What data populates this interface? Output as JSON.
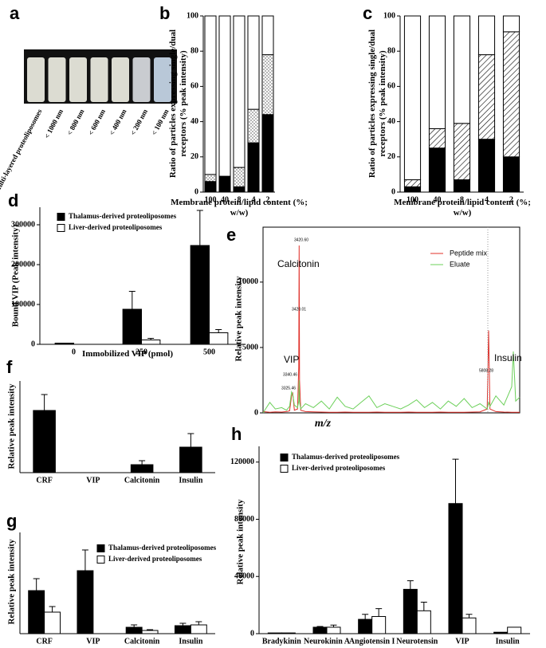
{
  "chart_data": [
    {
      "panel": "a",
      "type": "image",
      "labels": [
        "Multi-layered proteoliposomes",
        "< 1000 nm",
        "< 800 nm",
        "< 600 nm",
        "< 400 nm",
        "< 200 nm",
        "< 100 nm"
      ]
    },
    {
      "panel": "b",
      "type": "stacked_bar",
      "categories": [
        "100",
        "40",
        "8",
        "4",
        "2"
      ],
      "series": [
        {
          "color": "#000000",
          "values": [
            6,
            9,
            3,
            28,
            44
          ]
        },
        {
          "color": "#ffffff",
          "pattern": "dots",
          "values": [
            4,
            0,
            11,
            19,
            34
          ]
        },
        {
          "color": "#ffffff",
          "values": [
            90,
            91,
            86,
            53,
            22
          ]
        }
      ],
      "ylim": [
        0,
        100
      ],
      "yticks": [
        0,
        20,
        40,
        60,
        80,
        100
      ],
      "ylabel": "Ratio of particles expressing single/dual receptors (% peak intensity)",
      "xlabel": "Membrane protein/lipid content (%; w/w)"
    },
    {
      "panel": "c",
      "type": "stacked_bar",
      "categories": [
        "100",
        "40",
        "8",
        "4",
        "2"
      ],
      "series": [
        {
          "color": "#000000",
          "values": [
            3,
            25,
            7,
            30,
            20
          ]
        },
        {
          "color": "#ffffff",
          "pattern": "hatch",
          "values": [
            4,
            11,
            32,
            48,
            71
          ]
        },
        {
          "color": "#ffffff",
          "values": [
            93,
            64,
            61,
            22,
            9
          ]
        }
      ],
      "ylim": [
        0,
        100
      ],
      "yticks": [
        0,
        20,
        40,
        60,
        80,
        100
      ],
      "ylabel": "Ratio of particles expressing single/dual receptors (% peak intensity)",
      "xlabel": "Membrane protein/lipid content (%; w/w)"
    },
    {
      "panel": "d",
      "type": "bar",
      "categories": [
        "0",
        "250",
        "500"
      ],
      "series": [
        {
          "name": "Thalamus-derived proteoliposomes",
          "color": "#000000",
          "values": [
            3000,
            88000,
            248000
          ],
          "errors": [
            0,
            45000,
            88000
          ]
        },
        {
          "name": "Liver-derived proteoliposomes",
          "color": "#ffffff",
          "values": [
            0,
            11000,
            29000
          ],
          "errors": [
            0,
            4000,
            8000
          ]
        }
      ],
      "ylim": [
        0,
        344000
      ],
      "yticks": [
        0,
        100000,
        200000,
        300000
      ],
      "ylabel": "Bound VIP (Peak intensity)",
      "xlabel": "Immobilized VIP (pmol)",
      "legend": "upper left"
    },
    {
      "panel": "e",
      "type": "line",
      "x": [
        2965,
        3050,
        3120,
        3200,
        3260,
        3300,
        3325,
        3340,
        3360,
        3400,
        3415,
        3420,
        3425,
        3440,
        3500,
        3600,
        3700,
        3800,
        3900,
        4000,
        4100,
        4200,
        4300,
        4400,
        4500,
        4600,
        4700,
        4800,
        4900,
        5000,
        5100,
        5200,
        5300,
        5400,
        5500,
        5600,
        5700,
        5790,
        5808,
        5825,
        5900,
        6000,
        6100,
        6120,
        6150,
        6200
      ],
      "series": [
        {
          "name": "Peptide mix",
          "color": "#e0302a",
          "values": [
            100,
            50,
            80,
            60,
            100,
            150,
            1300,
            1500,
            200,
            300,
            3500,
            12800,
            2500,
            200,
            100,
            80,
            60,
            50,
            50,
            60,
            50,
            40,
            50,
            60,
            50,
            40,
            50,
            60,
            50,
            40,
            50,
            60,
            50,
            40,
            50,
            60,
            80,
            300,
            6300,
            300,
            100,
            60,
            50,
            40,
            50,
            40
          ]
        },
        {
          "name": "Eluate",
          "color": "#6cd05a",
          "values": [
            0,
            800,
            300,
            400,
            200,
            500,
            1600,
            1400,
            600,
            400,
            900,
            2500,
            800,
            300,
            700,
            400,
            900,
            300,
            1200,
            500,
            300,
            800,
            1300,
            400,
            700,
            500,
            300,
            600,
            1000,
            400,
            800,
            300,
            900,
            500,
            1100,
            400,
            700,
            300,
            800,
            500,
            1300,
            600,
            2000,
            4700,
            900,
            1200
          ]
        }
      ],
      "xlim": [
        2965,
        6200
      ],
      "ylim": [
        0,
        14200
      ],
      "yticks": [
        0,
        5000,
        10000
      ],
      "ylabel": "Relative peak intensity",
      "xlabel": "m/z",
      "legend": "upper right",
      "annotations": [
        {
          "text": "Calcitonin",
          "color": "#1f2fa0"
        },
        {
          "text": "VIP",
          "color": "#1f2fa0"
        },
        {
          "text": "Insulin",
          "color": "#d8332a"
        }
      ],
      "peak_labels": [
        "3420.60",
        "3420.01",
        "3340.46",
        "3325.46",
        "5808.28"
      ]
    },
    {
      "panel": "f",
      "type": "bar",
      "categories": [
        "CRF",
        "VIP",
        "Calcitonin",
        "Insulin"
      ],
      "series": [
        {
          "color": "#000000",
          "values": [
            78,
            0,
            10,
            32
          ],
          "errors": [
            20,
            0,
            5,
            17
          ]
        }
      ],
      "ylim": [
        0,
        115
      ],
      "ylabel": "Relative peak intensity"
    },
    {
      "panel": "g",
      "type": "bar",
      "categories": [
        "CRF",
        "VIP",
        "Calcitonin",
        "Insulin"
      ],
      "series": [
        {
          "name": "Thalamus-derived proteoliposomes",
          "color": "#000000",
          "values": [
            54,
            79,
            8,
            10
          ],
          "errors": [
            15,
            26,
            3,
            3
          ]
        },
        {
          "name": "Liver-derived proteoliposomes",
          "color": "#ffffff",
          "values": [
            27,
            0,
            4,
            11
          ],
          "errors": [
            7,
            0,
            1,
            4
          ]
        }
      ],
      "ylim": [
        0,
        127
      ],
      "ylabel": "Relative peak intensity",
      "legend": "upper right"
    },
    {
      "panel": "h",
      "type": "bar",
      "categories": [
        "Bradykinin",
        "Neurokinin A",
        "Angiotensin I",
        "Neurotensin",
        "VIP",
        "Insulin"
      ],
      "series": [
        {
          "name": "Thalamus-derived proteoliposomes",
          "color": "#000000",
          "values": [
            500,
            4500,
            10000,
            31000,
            91000,
            1000
          ],
          "errors": [
            0,
            500,
            3500,
            6000,
            31000,
            0
          ]
        },
        {
          "name": "Liver-derived proteoliposomes",
          "color": "#ffffff",
          "values": [
            500,
            4500,
            12000,
            16000,
            11000,
            4500
          ],
          "errors": [
            0,
            1500,
            5500,
            6000,
            2500,
            0
          ]
        }
      ],
      "ylim": [
        0,
        131000
      ],
      "yticks": [
        0,
        40000,
        80000,
        120000
      ],
      "ylabel": "Relative peak intensity",
      "legend": "upper left"
    }
  ]
}
